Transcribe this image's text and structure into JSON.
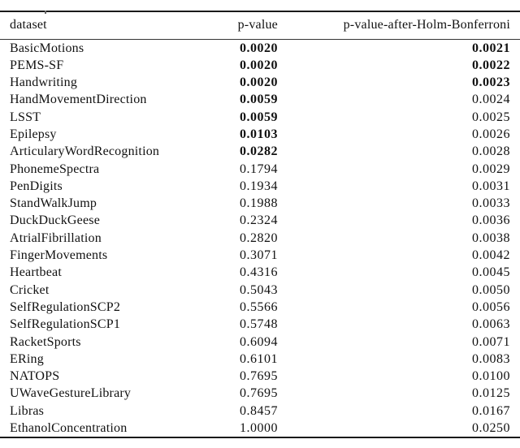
{
  "colors": {
    "text": "#111111",
    "rule_heavy": "#1a1a1a",
    "rule_light": "#333333",
    "background": "#ffffff"
  },
  "table": {
    "columns": [
      "dataset",
      "p-value",
      "p-value-after-Holm-Bonferroni"
    ],
    "rows": [
      {
        "dataset": "BasicMotions",
        "p_value": "0.0020",
        "p_value_bold": true,
        "holm": "0.0021",
        "holm_bold": true
      },
      {
        "dataset": "PEMS-SF",
        "p_value": "0.0020",
        "p_value_bold": true,
        "holm": "0.0022",
        "holm_bold": true
      },
      {
        "dataset": "Handwriting",
        "p_value": "0.0020",
        "p_value_bold": true,
        "holm": "0.0023",
        "holm_bold": true
      },
      {
        "dataset": "HandMovementDirection",
        "p_value": "0.0059",
        "p_value_bold": true,
        "holm": "0.0024",
        "holm_bold": false
      },
      {
        "dataset": "LSST",
        "p_value": "0.0059",
        "p_value_bold": true,
        "holm": "0.0025",
        "holm_bold": false
      },
      {
        "dataset": "Epilepsy",
        "p_value": "0.0103",
        "p_value_bold": true,
        "holm": "0.0026",
        "holm_bold": false
      },
      {
        "dataset": "ArticularyWordRecognition",
        "p_value": "0.0282",
        "p_value_bold": true,
        "holm": "0.0028",
        "holm_bold": false
      },
      {
        "dataset": "PhonemeSpectra",
        "p_value": "0.1794",
        "p_value_bold": false,
        "holm": "0.0029",
        "holm_bold": false
      },
      {
        "dataset": "PenDigits",
        "p_value": "0.1934",
        "p_value_bold": false,
        "holm": "0.0031",
        "holm_bold": false
      },
      {
        "dataset": "StandWalkJump",
        "p_value": "0.1988",
        "p_value_bold": false,
        "holm": "0.0033",
        "holm_bold": false
      },
      {
        "dataset": "DuckDuckGeese",
        "p_value": "0.2324",
        "p_value_bold": false,
        "holm": "0.0036",
        "holm_bold": false
      },
      {
        "dataset": "AtrialFibrillation",
        "p_value": "0.2820",
        "p_value_bold": false,
        "holm": "0.0038",
        "holm_bold": false
      },
      {
        "dataset": "FingerMovements",
        "p_value": "0.3071",
        "p_value_bold": false,
        "holm": "0.0042",
        "holm_bold": false
      },
      {
        "dataset": "Heartbeat",
        "p_value": "0.4316",
        "p_value_bold": false,
        "holm": "0.0045",
        "holm_bold": false
      },
      {
        "dataset": "Cricket",
        "p_value": "0.5043",
        "p_value_bold": false,
        "holm": "0.0050",
        "holm_bold": false
      },
      {
        "dataset": "SelfRegulationSCP2",
        "p_value": "0.5566",
        "p_value_bold": false,
        "holm": "0.0056",
        "holm_bold": false
      },
      {
        "dataset": "SelfRegulationSCP1",
        "p_value": "0.5748",
        "p_value_bold": false,
        "holm": "0.0063",
        "holm_bold": false
      },
      {
        "dataset": "RacketSports",
        "p_value": "0.6094",
        "p_value_bold": false,
        "holm": "0.0071",
        "holm_bold": false
      },
      {
        "dataset": "ERing",
        "p_value": "0.6101",
        "p_value_bold": false,
        "holm": "0.0083",
        "holm_bold": false
      },
      {
        "dataset": "NATOPS",
        "p_value": "0.7695",
        "p_value_bold": false,
        "holm": "0.0100",
        "holm_bold": false
      },
      {
        "dataset": "UWaveGestureLibrary",
        "p_value": "0.7695",
        "p_value_bold": false,
        "holm": "0.0125",
        "holm_bold": false
      },
      {
        "dataset": "Libras",
        "p_value": "0.8457",
        "p_value_bold": false,
        "holm": "0.0167",
        "holm_bold": false
      },
      {
        "dataset": "EthanolConcentration",
        "p_value": "1.0000",
        "p_value_bold": false,
        "holm": "0.0250",
        "holm_bold": false
      }
    ]
  }
}
